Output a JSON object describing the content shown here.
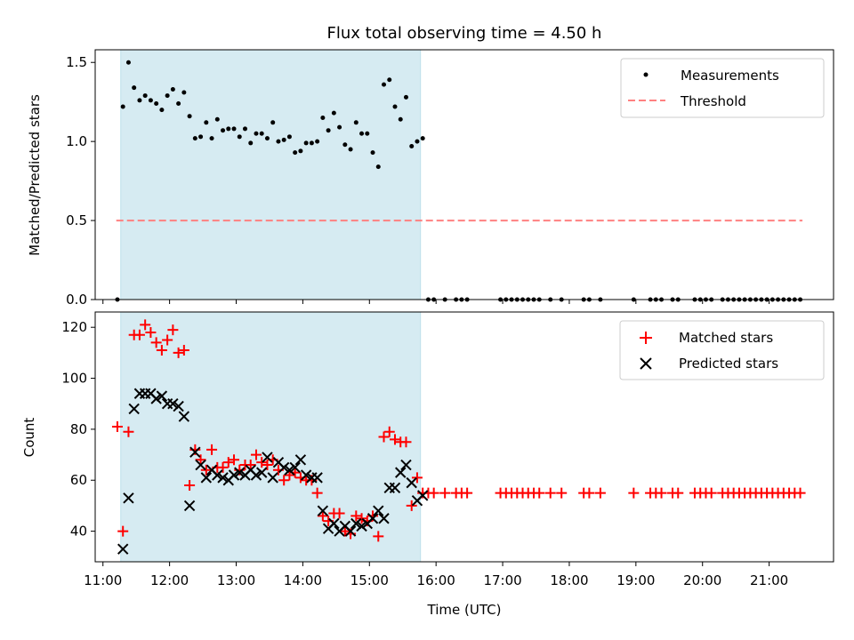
{
  "chart_data": [
    {
      "type": "scatter",
      "title": "Flux total observing time = 4.50 h",
      "xlabel": "",
      "ylabel": "Matched/Predicted stars",
      "ylim": [
        0,
        1.58
      ],
      "yticks": [
        "0.0",
        "0.5",
        "1.0",
        "1.5"
      ],
      "legend": {
        "placement": "top-right",
        "entries": [
          "Measurements",
          "Threshold"
        ]
      },
      "highlight_span": {
        "from": "11:16",
        "to": "15:46",
        "color": "#add8e6"
      },
      "threshold": {
        "value": 0.5,
        "from": "11:12",
        "to": "21:30",
        "color": "#ff8080"
      },
      "series": [
        {
          "name": "Measurements",
          "color": "#000000",
          "x": [
            "11:13",
            "11:18",
            "11:23",
            "11:28",
            "11:33",
            "11:38",
            "11:43",
            "11:48",
            "11:53",
            "11:58",
            "12:03",
            "12:08",
            "12:13",
            "12:18",
            "12:23",
            "12:28",
            "12:33",
            "12:38",
            "12:43",
            "12:48",
            "12:53",
            "12:58",
            "13:03",
            "13:08",
            "13:13",
            "13:18",
            "13:23",
            "13:28",
            "13:33",
            "13:38",
            "13:43",
            "13:48",
            "13:53",
            "13:58",
            "14:03",
            "14:08",
            "14:13",
            "14:18",
            "14:23",
            "14:28",
            "14:33",
            "14:38",
            "14:43",
            "14:48",
            "14:53",
            "14:58",
            "15:03",
            "15:08",
            "15:13",
            "15:18",
            "15:23",
            "15:28",
            "15:33",
            "15:38",
            "15:43",
            "15:48",
            "15:53",
            "15:58",
            "16:08",
            "16:18",
            "16:23",
            "16:28",
            "16:58",
            "17:03",
            "17:08",
            "17:13",
            "17:18",
            "17:23",
            "17:28",
            "17:33",
            "17:43",
            "17:53",
            "18:13",
            "18:18",
            "18:28",
            "18:58",
            "19:13",
            "19:18",
            "19:23",
            "19:33",
            "19:38",
            "19:53",
            "19:58",
            "20:03",
            "20:08",
            "20:18",
            "20:23",
            "20:28",
            "20:33",
            "20:38",
            "20:43",
            "20:48",
            "20:53",
            "20:58",
            "21:03",
            "21:08",
            "21:13",
            "21:18",
            "21:23",
            "21:28"
          ],
          "y": [
            0.0,
            1.22,
            1.5,
            1.34,
            1.26,
            1.29,
            1.26,
            1.24,
            1.2,
            1.29,
            1.33,
            1.24,
            1.31,
            1.16,
            1.02,
            1.03,
            1.12,
            1.02,
            1.14,
            1.07,
            1.08,
            1.08,
            1.03,
            1.08,
            0.99,
            1.05,
            1.05,
            1.02,
            1.12,
            1.0,
            1.01,
            1.03,
            0.93,
            0.94,
            0.99,
            0.99,
            1.0,
            1.15,
            1.07,
            1.18,
            1.09,
            0.98,
            0.95,
            1.12,
            1.05,
            1.05,
            0.93,
            0.84,
            1.36,
            1.39,
            1.22,
            1.14,
            1.28,
            0.97,
            1.0,
            1.02,
            0,
            0,
            0,
            0,
            0,
            0,
            0,
            0,
            0,
            0,
            0,
            0,
            0,
            0,
            0,
            0,
            0,
            0,
            0,
            0,
            0,
            0,
            0,
            0,
            0,
            0,
            0,
            0,
            0,
            0,
            0,
            0,
            0,
            0,
            0,
            0,
            0,
            0,
            0,
            0,
            0,
            0,
            0,
            0
          ]
        }
      ]
    },
    {
      "type": "scatter",
      "xlabel": "Time (UTC)",
      "ylabel": "Count",
      "ylim": [
        28,
        126
      ],
      "yticks": [
        "40",
        "60",
        "80",
        "100",
        "120"
      ],
      "xlim": [
        "10:53",
        "21:58"
      ],
      "xticks": [
        "11:00",
        "12:00",
        "13:00",
        "14:00",
        "15:00",
        "16:00",
        "17:00",
        "18:00",
        "19:00",
        "20:00",
        "21:00"
      ],
      "legend": {
        "placement": "top-right",
        "entries": [
          "Matched stars",
          "Predicted stars"
        ]
      },
      "highlight_span": {
        "from": "11:16",
        "to": "15:46",
        "color": "#add8e6"
      },
      "series": [
        {
          "name": "Matched stars",
          "marker": "plus",
          "color": "#ff0000",
          "x": [
            "11:13",
            "11:18",
            "11:23",
            "11:28",
            "11:33",
            "11:38",
            "11:43",
            "11:48",
            "11:53",
            "11:58",
            "12:03",
            "12:08",
            "12:13",
            "12:18",
            "12:23",
            "12:28",
            "12:33",
            "12:38",
            "12:43",
            "12:48",
            "12:53",
            "12:58",
            "13:03",
            "13:08",
            "13:13",
            "13:18",
            "13:23",
            "13:28",
            "13:33",
            "13:38",
            "13:43",
            "13:48",
            "13:53",
            "13:58",
            "14:03",
            "14:08",
            "14:13",
            "14:18",
            "14:23",
            "14:28",
            "14:33",
            "14:38",
            "14:43",
            "14:48",
            "14:53",
            "14:58",
            "15:03",
            "15:08",
            "15:13",
            "15:18",
            "15:23",
            "15:28",
            "15:33",
            "15:38",
            "15:43",
            "15:48",
            "15:53",
            "15:58",
            "16:08",
            "16:18",
            "16:23",
            "16:28",
            "16:58",
            "17:03",
            "17:08",
            "17:13",
            "17:18",
            "17:23",
            "17:28",
            "17:33",
            "17:43",
            "17:53",
            "18:13",
            "18:18",
            "18:28",
            "18:58",
            "19:13",
            "19:18",
            "19:23",
            "19:33",
            "19:38",
            "19:53",
            "19:58",
            "20:03",
            "20:08",
            "20:18",
            "20:23",
            "20:28",
            "20:33",
            "20:38",
            "20:43",
            "20:48",
            "20:53",
            "20:58",
            "21:03",
            "21:08",
            "21:13",
            "21:18",
            "21:23",
            "21:28"
          ],
          "y": [
            81,
            40,
            79,
            117,
            117,
            121,
            118,
            114,
            111,
            115,
            119,
            110,
            111,
            58,
            72,
            68,
            64,
            72,
            65,
            65,
            67,
            68,
            64,
            66,
            66,
            70,
            67,
            66,
            68,
            64,
            60,
            62,
            63,
            61,
            60,
            60,
            55,
            46,
            44,
            47,
            47,
            40,
            39,
            46,
            45,
            44,
            46,
            38,
            77,
            79,
            76,
            75,
            75,
            50,
            61,
            55,
            55,
            55,
            55,
            55,
            55,
            55,
            55,
            55,
            55,
            55,
            55,
            55,
            55,
            55,
            55,
            55,
            55,
            55,
            55,
            55,
            55,
            55,
            55,
            55,
            55,
            55,
            55,
            55,
            55,
            55,
            55,
            55,
            55,
            55,
            55,
            55,
            55,
            55,
            55,
            55,
            55,
            55,
            55,
            55
          ]
        },
        {
          "name": "Predicted stars",
          "marker": "x",
          "color": "#000000",
          "x": [
            "11:18",
            "11:23",
            "11:28",
            "11:33",
            "11:38",
            "11:43",
            "11:48",
            "11:53",
            "11:58",
            "12:03",
            "12:08",
            "12:13",
            "12:18",
            "12:23",
            "12:28",
            "12:33",
            "12:38",
            "12:43",
            "12:48",
            "12:53",
            "12:58",
            "13:03",
            "13:08",
            "13:13",
            "13:18",
            "13:23",
            "13:28",
            "13:33",
            "13:38",
            "13:43",
            "13:48",
            "13:53",
            "13:58",
            "14:03",
            "14:08",
            "14:13",
            "14:18",
            "14:23",
            "14:28",
            "14:33",
            "14:38",
            "14:43",
            "14:48",
            "14:53",
            "14:58",
            "15:03",
            "15:08",
            "15:13",
            "15:18",
            "15:23",
            "15:28",
            "15:33",
            "15:38",
            "15:43",
            "15:48"
          ],
          "y": [
            33,
            53,
            88,
            94,
            94,
            94,
            92,
            93,
            90,
            90,
            89,
            85,
            50,
            71,
            66,
            61,
            64,
            62,
            61,
            60,
            62,
            63,
            62,
            64,
            62,
            63,
            69,
            61,
            67,
            65,
            64,
            65,
            68,
            62,
            61,
            61,
            48,
            41,
            43,
            40,
            42,
            40,
            43,
            42,
            43,
            45,
            48,
            45,
            57,
            57,
            63,
            66,
            59,
            52,
            54
          ]
        }
      ]
    }
  ]
}
